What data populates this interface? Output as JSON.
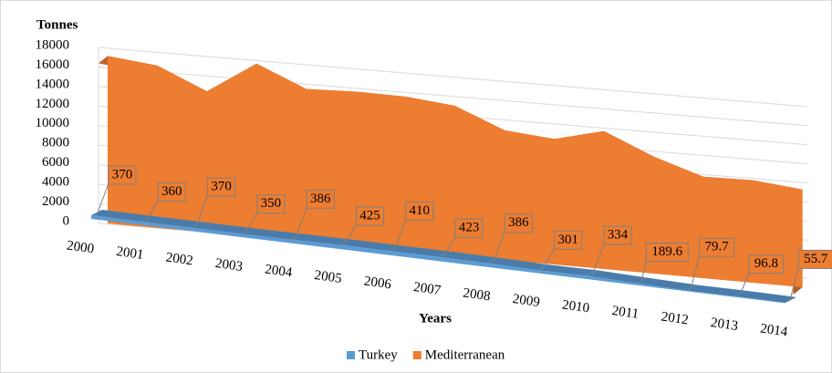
{
  "chart_data": {
    "type": "area",
    "y_label": "Tonnes",
    "x_label": "Years",
    "categories": [
      "2000",
      "2001",
      "2002",
      "2003",
      "2004",
      "2005",
      "2006",
      "2007",
      "2008",
      "2009",
      "2010",
      "2011",
      "2012",
      "2013",
      "2014"
    ],
    "series": [
      {
        "name": "Turkey",
        "color": "#5b9bd5",
        "values": [
          370,
          360,
          370,
          350,
          386,
          425,
          410,
          423,
          386,
          301,
          334,
          189.6,
          79.7,
          96.8,
          55.7
        ]
      },
      {
        "name": "Mediterranean",
        "color": "#ed7d31",
        "values": [
          17000,
          16300,
          14000,
          17000,
          14800,
          14800,
          14600,
          14000,
          12000,
          11500,
          12500,
          10500,
          9000,
          9000,
          8500
        ]
      }
    ],
    "ylim": [
      0,
      18000
    ],
    "yticks": [
      0,
      2000,
      4000,
      6000,
      8000,
      10000,
      12000,
      14000,
      16000,
      18000
    ],
    "grid": true,
    "legend": "bottom"
  }
}
